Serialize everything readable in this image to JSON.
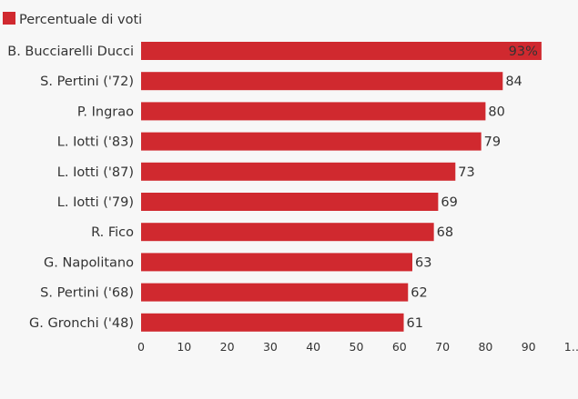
{
  "chart_data": {
    "type": "bar",
    "orientation": "horizontal",
    "legend": {
      "label": "Percentuale di voti",
      "color": "#d0292f",
      "placement": "top-left"
    },
    "categories": [
      "B. Bucciarelli Ducci",
      "S. Pertini ('72)",
      "P. Ingrao",
      "L. Iotti ('83)",
      "L. Iotti ('87)",
      "L. Iotti ('79)",
      "R. Fico",
      "G. Napolitano",
      "S. Pertini ('68)",
      "G. Gronchi ('48)"
    ],
    "series": [
      {
        "name": "Percentuale di voti",
        "color": "#d0292f",
        "values": [
          93,
          84,
          80,
          79,
          73,
          69,
          68,
          63,
          62,
          61
        ],
        "value_labels": [
          "93%",
          "84",
          "80",
          "79",
          "73",
          "69",
          "68",
          "63",
          "62",
          "61"
        ]
      }
    ],
    "x_ticks": [
      "0",
      "10",
      "20",
      "30",
      "40",
      "50",
      "60",
      "70",
      "80",
      "90",
      "1…"
    ],
    "xlim": [
      0,
      100
    ],
    "grid": false,
    "title": "",
    "xlabel": "",
    "ylabel": ""
  }
}
